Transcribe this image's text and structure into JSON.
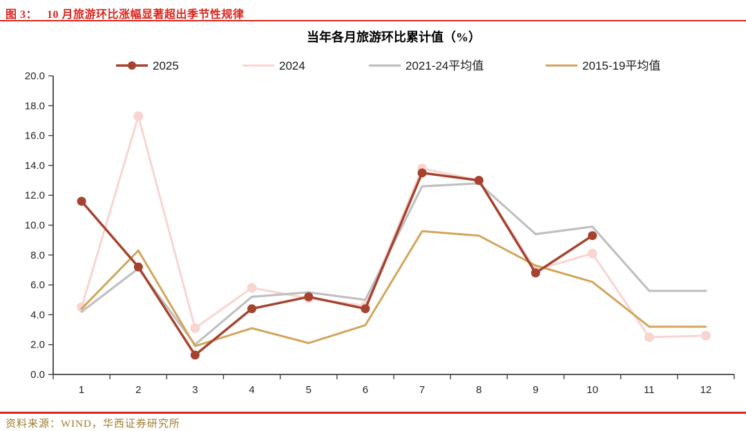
{
  "colors": {
    "accent_red": "#D9251C",
    "footer_text": "#A07C2F",
    "axis": "#404040"
  },
  "header": {
    "figure_label": "图 3：",
    "title": "10 月旅游环比涨幅显著超出季节性规律"
  },
  "footer": {
    "source": "资料来源：WIND，华西证券研究所"
  },
  "chart_data": {
    "type": "line",
    "title": "当年各月旅游环比累计值（%）",
    "x": [
      1,
      2,
      3,
      4,
      5,
      6,
      7,
      8,
      9,
      10,
      11,
      12
    ],
    "xlabel": "",
    "ylabel": "",
    "ylim": [
      0,
      20
    ],
    "ytick_step": 2,
    "grid": false,
    "legend_position": "top",
    "series": [
      {
        "name": "2025",
        "color": "#A5432F",
        "marker": "circle",
        "line_width": 3.5,
        "values": [
          11.6,
          7.2,
          1.3,
          4.4,
          5.2,
          4.4,
          13.5,
          13.0,
          6.8,
          9.3,
          null,
          null
        ]
      },
      {
        "name": "2024",
        "color": "#F8D5D1",
        "marker": "circle",
        "line_width": 3,
        "values": [
          4.5,
          17.3,
          3.1,
          5.8,
          5.1,
          4.6,
          13.8,
          13.0,
          7.0,
          8.1,
          2.5,
          2.6
        ]
      },
      {
        "name": "2021-24平均值",
        "color": "#C0C0C0",
        "marker": "none",
        "line_width": 3.2,
        "values": [
          4.2,
          7.1,
          2.0,
          5.2,
          5.5,
          5.0,
          12.6,
          12.8,
          9.4,
          9.9,
          5.6,
          5.6
        ]
      },
      {
        "name": "2015-19平均值",
        "color": "#D2A55C",
        "marker": "none",
        "line_width": 3,
        "values": [
          4.4,
          8.3,
          1.9,
          3.1,
          2.1,
          3.3,
          9.6,
          9.3,
          7.3,
          6.2,
          3.2,
          3.2
        ]
      }
    ]
  }
}
